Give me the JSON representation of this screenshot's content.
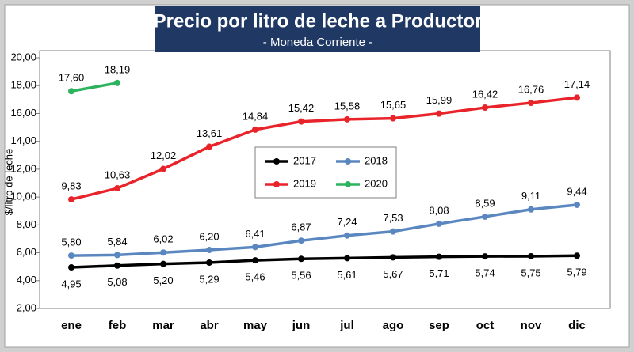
{
  "chart_data": {
    "type": "line",
    "title": "Precio por litro de leche a Productor",
    "subtitle": "- Moneda Corriente -",
    "y_label": "$/litro de leche",
    "categories": [
      "ene",
      "feb",
      "mar",
      "abr",
      "may",
      "jun",
      "jul",
      "ago",
      "sep",
      "oct",
      "nov",
      "dic"
    ],
    "ylim": [
      2,
      20
    ],
    "yticks": [
      {
        "value": 2,
        "label": "2,00"
      },
      {
        "value": 4,
        "label": "4,00"
      },
      {
        "value": 6,
        "label": "6,00"
      },
      {
        "value": 8,
        "label": "8,00"
      },
      {
        "value": 10,
        "label": "10,00"
      },
      {
        "value": 12,
        "label": "12,00"
      },
      {
        "value": 14,
        "label": "14,00"
      },
      {
        "value": 16,
        "label": "16,00"
      },
      {
        "value": 18,
        "label": "18,00"
      },
      {
        "value": 20,
        "label": "20,00"
      }
    ],
    "grid": false,
    "series": [
      {
        "name": "2017",
        "color": "#000000",
        "values": [
          4.95,
          5.08,
          5.2,
          5.29,
          5.46,
          5.56,
          5.61,
          5.67,
          5.71,
          5.74,
          5.75,
          5.79
        ],
        "value_labels": [
          "4,95",
          "5,08",
          "5,20",
          "5,29",
          "5,46",
          "5,56",
          "5,61",
          "5,67",
          "5,71",
          "5,74",
          "5,75",
          "5,79"
        ]
      },
      {
        "name": "2018",
        "color": "#5b87c0",
        "values": [
          5.8,
          5.84,
          6.02,
          6.2,
          6.41,
          6.87,
          7.24,
          7.53,
          8.08,
          8.59,
          9.11,
          9.44
        ],
        "value_labels": [
          "5,80",
          "5,84",
          "6,02",
          "6,20",
          "6,41",
          "6,87",
          "7,24",
          "7,53",
          "8,08",
          "8,59",
          "9,11",
          "9,44"
        ]
      },
      {
        "name": "2019",
        "color": "#e8242a",
        "values": [
          9.83,
          10.63,
          12.02,
          13.61,
          14.84,
          15.42,
          15.58,
          15.65,
          15.99,
          16.42,
          16.76,
          17.14
        ],
        "value_labels": [
          "9,83",
          "10,63",
          "12,02",
          "13,61",
          "14,84",
          "15,42",
          "15,58",
          "15,65",
          "15,99",
          "16,42",
          "16,76",
          "17,14"
        ]
      },
      {
        "name": "2020",
        "color": "#2db35d",
        "values": [
          17.6,
          18.19,
          null,
          null,
          null,
          null,
          null,
          null,
          null,
          null,
          null,
          null
        ],
        "value_labels": [
          "17,60",
          "18,19",
          null,
          null,
          null,
          null,
          null,
          null,
          null,
          null,
          null,
          null
        ]
      }
    ]
  }
}
